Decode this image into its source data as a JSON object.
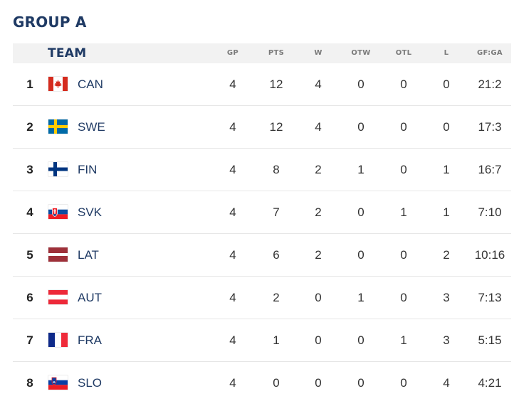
{
  "title": "GROUP A",
  "headers": {
    "team": "TEAM",
    "gp": "GP",
    "pts": "PTS",
    "w": "W",
    "otw": "OTW",
    "otl": "OTL",
    "l": "L",
    "gfga": "GF:GA"
  },
  "rows": [
    {
      "rank": "1",
      "flag": "canada-flag-icon",
      "team": "CAN",
      "gp": "4",
      "pts": "12",
      "w": "4",
      "otw": "0",
      "otl": "0",
      "l": "0",
      "gfga": "21:2"
    },
    {
      "rank": "2",
      "flag": "sweden-flag-icon",
      "team": "SWE",
      "gp": "4",
      "pts": "12",
      "w": "4",
      "otw": "0",
      "otl": "0",
      "l": "0",
      "gfga": "17:3"
    },
    {
      "rank": "3",
      "flag": "finland-flag-icon",
      "team": "FIN",
      "gp": "4",
      "pts": "8",
      "w": "2",
      "otw": "1",
      "otl": "0",
      "l": "1",
      "gfga": "16:7"
    },
    {
      "rank": "4",
      "flag": "slovakia-flag-icon",
      "team": "SVK",
      "gp": "4",
      "pts": "7",
      "w": "2",
      "otw": "0",
      "otl": "1",
      "l": "1",
      "gfga": "7:10"
    },
    {
      "rank": "5",
      "flag": "latvia-flag-icon",
      "team": "LAT",
      "gp": "4",
      "pts": "6",
      "w": "2",
      "otw": "0",
      "otl": "0",
      "l": "2",
      "gfga": "10:16"
    },
    {
      "rank": "6",
      "flag": "austria-flag-icon",
      "team": "AUT",
      "gp": "4",
      "pts": "2",
      "w": "0",
      "otw": "1",
      "otl": "0",
      "l": "3",
      "gfga": "7:13"
    },
    {
      "rank": "7",
      "flag": "france-flag-icon",
      "team": "FRA",
      "gp": "4",
      "pts": "1",
      "w": "0",
      "otw": "0",
      "otl": "1",
      "l": "3",
      "gfga": "5:15"
    },
    {
      "rank": "8",
      "flag": "slovenia-flag-icon",
      "team": "SLO",
      "gp": "4",
      "pts": "0",
      "w": "0",
      "otw": "0",
      "otl": "0",
      "l": "4",
      "gfga": "4:21"
    }
  ],
  "colors": {
    "title": "#1f3a64",
    "team_text": "#1f3a64",
    "header_bg": "#f2f2f2",
    "header_text": "#7a7a7a",
    "divider": "#e6e6e6"
  }
}
